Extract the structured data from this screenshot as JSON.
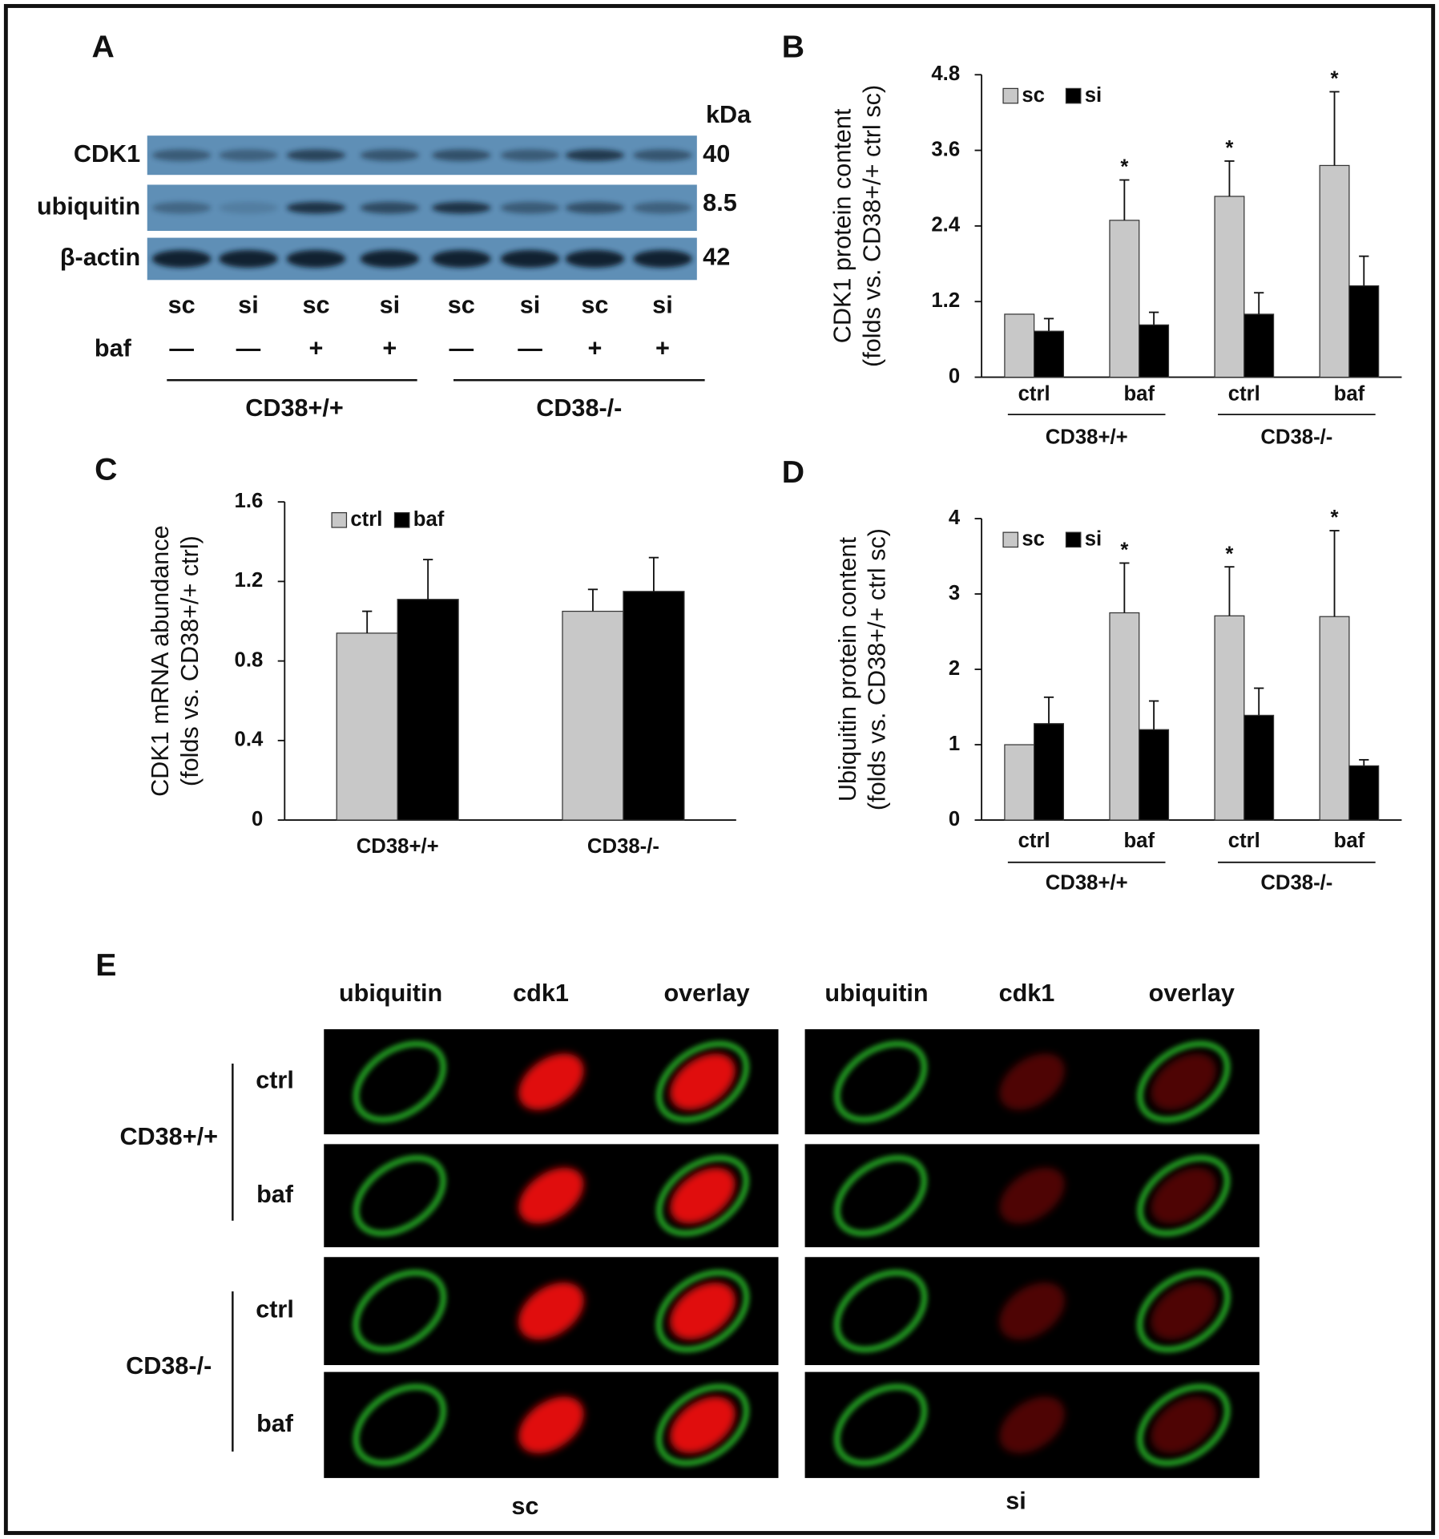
{
  "panel_labels": [
    "A",
    "B",
    "C",
    "D",
    "E"
  ],
  "blot": {
    "kda_label": "kDa",
    "rows": [
      {
        "name": "CDK1",
        "kda": 40
      },
      {
        "name": "ubiquitin",
        "kda": 8.5
      },
      {
        "name": "β-actin",
        "kda": 42
      }
    ],
    "lanes": [
      "sc",
      "si",
      "sc",
      "si",
      "sc",
      "si",
      "sc",
      "si"
    ],
    "treatment_label": "baf",
    "treatment": [
      "—",
      "—",
      "+",
      "+",
      "—",
      "—",
      "+",
      "+"
    ],
    "groups": [
      "CD38+/+",
      "CD38-/-"
    ]
  },
  "chart_data": [
    {
      "type": "bar",
      "ylabel": [
        "CDK1 protein content",
        "(folds vs. CD38+/+ ctrl sc)"
      ],
      "categories": [
        "ctrl",
        "baf",
        "ctrl",
        "baf"
      ],
      "groups": [
        "CD38+/+",
        "CD38-/-"
      ],
      "ylim": [
        0,
        4.8
      ],
      "yticks": [
        0,
        1.2,
        2.4,
        3.6,
        4.8
      ],
      "series": [
        {
          "name": "sc",
          "color": "#c8c8c8",
          "values": [
            1.0,
            2.49,
            2.87,
            3.36
          ],
          "errors": [
            null,
            0.64,
            0.56,
            1.17
          ],
          "labels": [
            null,
            "*",
            "*",
            "*"
          ]
        },
        {
          "name": "si",
          "color": "#000000",
          "values": [
            0.73,
            0.83,
            1.0,
            1.45
          ],
          "errors": [
            0.2,
            0.2,
            0.34,
            0.47
          ]
        }
      ]
    },
    {
      "type": "bar",
      "ylabel": [
        "CDK1 mRNA abundance",
        "(folds vs. CD38+/+ ctrl)"
      ],
      "categories": [
        "CD38+/+",
        "CD38-/-"
      ],
      "ylim": [
        0,
        1.6
      ],
      "yticks": [
        0,
        0.4,
        0.8,
        1.2,
        1.6
      ],
      "series": [
        {
          "name": "ctrl",
          "color": "#c8c8c8",
          "values": [
            0.94,
            1.05
          ],
          "errors": [
            0.11,
            0.11
          ]
        },
        {
          "name": "baf",
          "color": "#000000",
          "values": [
            1.11,
            1.15
          ],
          "errors": [
            0.2,
            0.17
          ]
        }
      ]
    },
    {
      "type": "bar",
      "ylabel": [
        "Ubiquitin  protein content",
        "(folds vs. CD38+/+ ctrl sc)"
      ],
      "categories": [
        "ctrl",
        "baf",
        "ctrl",
        "baf"
      ],
      "groups": [
        "CD38+/+",
        "CD38-/-"
      ],
      "ylim": [
        0,
        4
      ],
      "yticks": [
        0,
        1,
        2,
        3,
        4
      ],
      "series": [
        {
          "name": "sc",
          "color": "#c8c8c8",
          "values": [
            1.0,
            2.75,
            2.71,
            2.7
          ],
          "errors": [
            null,
            0.66,
            0.65,
            1.14
          ],
          "labels": [
            null,
            "*",
            "*",
            "*"
          ]
        },
        {
          "name": "si",
          "color": "#000000",
          "values": [
            1.28,
            1.2,
            1.39,
            0.72
          ],
          "errors": [
            0.35,
            0.38,
            0.36,
            0.08
          ]
        }
      ]
    }
  ],
  "imaging": {
    "columns": [
      "ubiquitin",
      "cdk1",
      "overlay",
      "ubiquitin",
      "cdk1",
      "overlay"
    ],
    "groups": [
      {
        "name": "CD38+/+",
        "rows": [
          "ctrl",
          "baf"
        ]
      },
      {
        "name": "CD38-/-",
        "rows": [
          "ctrl",
          "baf"
        ]
      }
    ],
    "conditions": [
      "sc",
      "si"
    ]
  }
}
